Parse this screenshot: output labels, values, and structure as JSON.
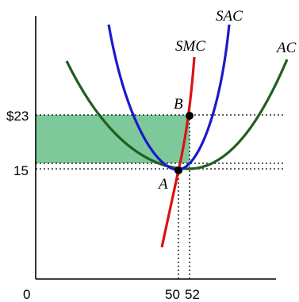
{
  "colors": {
    "ac": "#1f5f1f",
    "sac": "#1a1acc",
    "smc": "#dd1111",
    "shade": "#7ec99a",
    "axis": "#000000",
    "point": "#000000"
  },
  "labels": {
    "origin": "0",
    "price_high": "$23",
    "price_low": "15",
    "q_a": "50",
    "q_b": "52",
    "curve_sac": "SAC",
    "curve_smc": "SMC",
    "curve_ac": "AC",
    "point_a": "A",
    "point_b": "B"
  }
}
